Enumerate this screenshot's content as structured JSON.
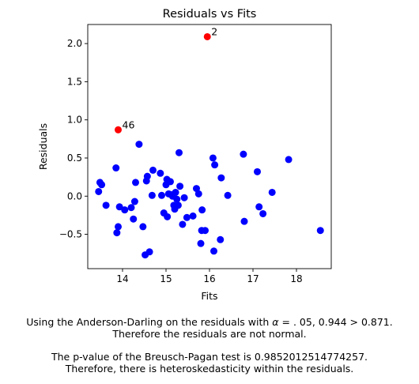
{
  "chart_data": {
    "type": "scatter",
    "title": "Residuals vs Fits",
    "xlabel": "Fits",
    "ylabel": "Residuals",
    "xlim": [
      13.2,
      18.8
    ],
    "ylim": [
      -0.95,
      2.25
    ],
    "xticks": [
      "14",
      "15",
      "16",
      "17",
      "18"
    ],
    "yticks": [
      "−0.5",
      "0.0",
      "0.5",
      "1.0",
      "1.5",
      "2.0"
    ],
    "grid": false,
    "colors": {
      "normal": "#0000ff",
      "outlier": "#ff0000"
    },
    "points": [
      [
        13.45,
        0.06
      ],
      [
        13.48,
        0.18
      ],
      [
        13.52,
        0.15
      ],
      [
        13.62,
        -0.12
      ],
      [
        13.85,
        0.37
      ],
      [
        13.87,
        -0.48
      ],
      [
        13.9,
        -0.4
      ],
      [
        13.93,
        -0.14
      ],
      [
        14.05,
        -0.18
      ],
      [
        14.2,
        -0.15
      ],
      [
        14.25,
        -0.3
      ],
      [
        14.28,
        -0.07
      ],
      [
        14.3,
        0.18
      ],
      [
        14.38,
        0.68
      ],
      [
        14.47,
        -0.4
      ],
      [
        14.52,
        -0.77
      ],
      [
        14.55,
        0.2
      ],
      [
        14.57,
        0.26
      ],
      [
        14.62,
        -0.73
      ],
      [
        14.68,
        0.01
      ],
      [
        14.7,
        0.34
      ],
      [
        14.87,
        0.3
      ],
      [
        14.9,
        0.01
      ],
      [
        14.95,
        -0.22
      ],
      [
        15.0,
        0.15
      ],
      [
        15.02,
        0.22
      ],
      [
        15.03,
        -0.27
      ],
      [
        15.06,
        0.03
      ],
      [
        15.1,
        0.19
      ],
      [
        15.12,
        0.02
      ],
      [
        15.15,
        0.0
      ],
      [
        15.18,
        -0.12
      ],
      [
        15.2,
        -0.17
      ],
      [
        15.22,
        0.05
      ],
      [
        15.25,
        -0.04
      ],
      [
        15.28,
        -0.12
      ],
      [
        15.3,
        0.57
      ],
      [
        15.32,
        0.13
      ],
      [
        15.38,
        -0.37
      ],
      [
        15.42,
        -0.02
      ],
      [
        15.48,
        -0.28
      ],
      [
        15.62,
        -0.26
      ],
      [
        15.7,
        0.1
      ],
      [
        15.75,
        0.03
      ],
      [
        15.8,
        -0.62
      ],
      [
        15.82,
        -0.45
      ],
      [
        15.83,
        -0.18
      ],
      [
        15.9,
        -0.45
      ],
      [
        16.08,
        0.5
      ],
      [
        16.1,
        -0.72
      ],
      [
        16.12,
        0.41
      ],
      [
        16.25,
        -0.57
      ],
      [
        16.27,
        0.24
      ],
      [
        16.42,
        0.01
      ],
      [
        16.78,
        0.55
      ],
      [
        16.8,
        -0.33
      ],
      [
        17.1,
        0.32
      ],
      [
        17.14,
        -0.14
      ],
      [
        17.23,
        -0.23
      ],
      [
        17.44,
        0.05
      ],
      [
        17.82,
        0.48
      ],
      [
        18.55,
        -0.45
      ]
    ],
    "outliers": [
      {
        "label": "2",
        "x": 15.95,
        "y": 2.09
      },
      {
        "label": "46",
        "x": 13.9,
        "y": 0.87
      }
    ]
  },
  "captions": {
    "ad_line1_prefix": "Using the Anderson-Darling on the residuals with ",
    "ad_alpha_symbol": "α",
    "ad_line1_suffix": " = . 05, 0.944 > 0.871.",
    "ad_line2": "Therefore the residuals are not normal.",
    "bp_line1": "The p-value of the Breusch-Pagan test is 0.9852012514774257.",
    "bp_line2": "Therefore, there is heteroskedasticity within the residuals."
  }
}
